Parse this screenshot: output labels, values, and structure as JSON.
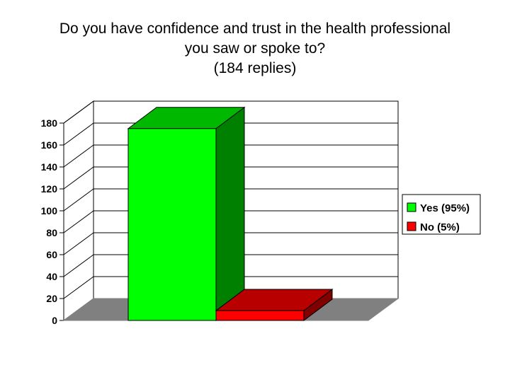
{
  "chart_data": {
    "type": "bar",
    "title": [
      "Do you have confidence and trust in the health professional",
      "you saw or spoke to?",
      "(184 replies)"
    ],
    "categories": [
      "Yes (95%)",
      "No (5%)"
    ],
    "values": [
      175,
      9
    ],
    "colors": [
      "#00ff00",
      "#ff0000"
    ],
    "ylim": [
      0,
      180
    ],
    "yticks": [
      0,
      20,
      40,
      60,
      80,
      100,
      120,
      140,
      160,
      180
    ],
    "legend_position": "right",
    "grid": true,
    "three_d": true
  }
}
